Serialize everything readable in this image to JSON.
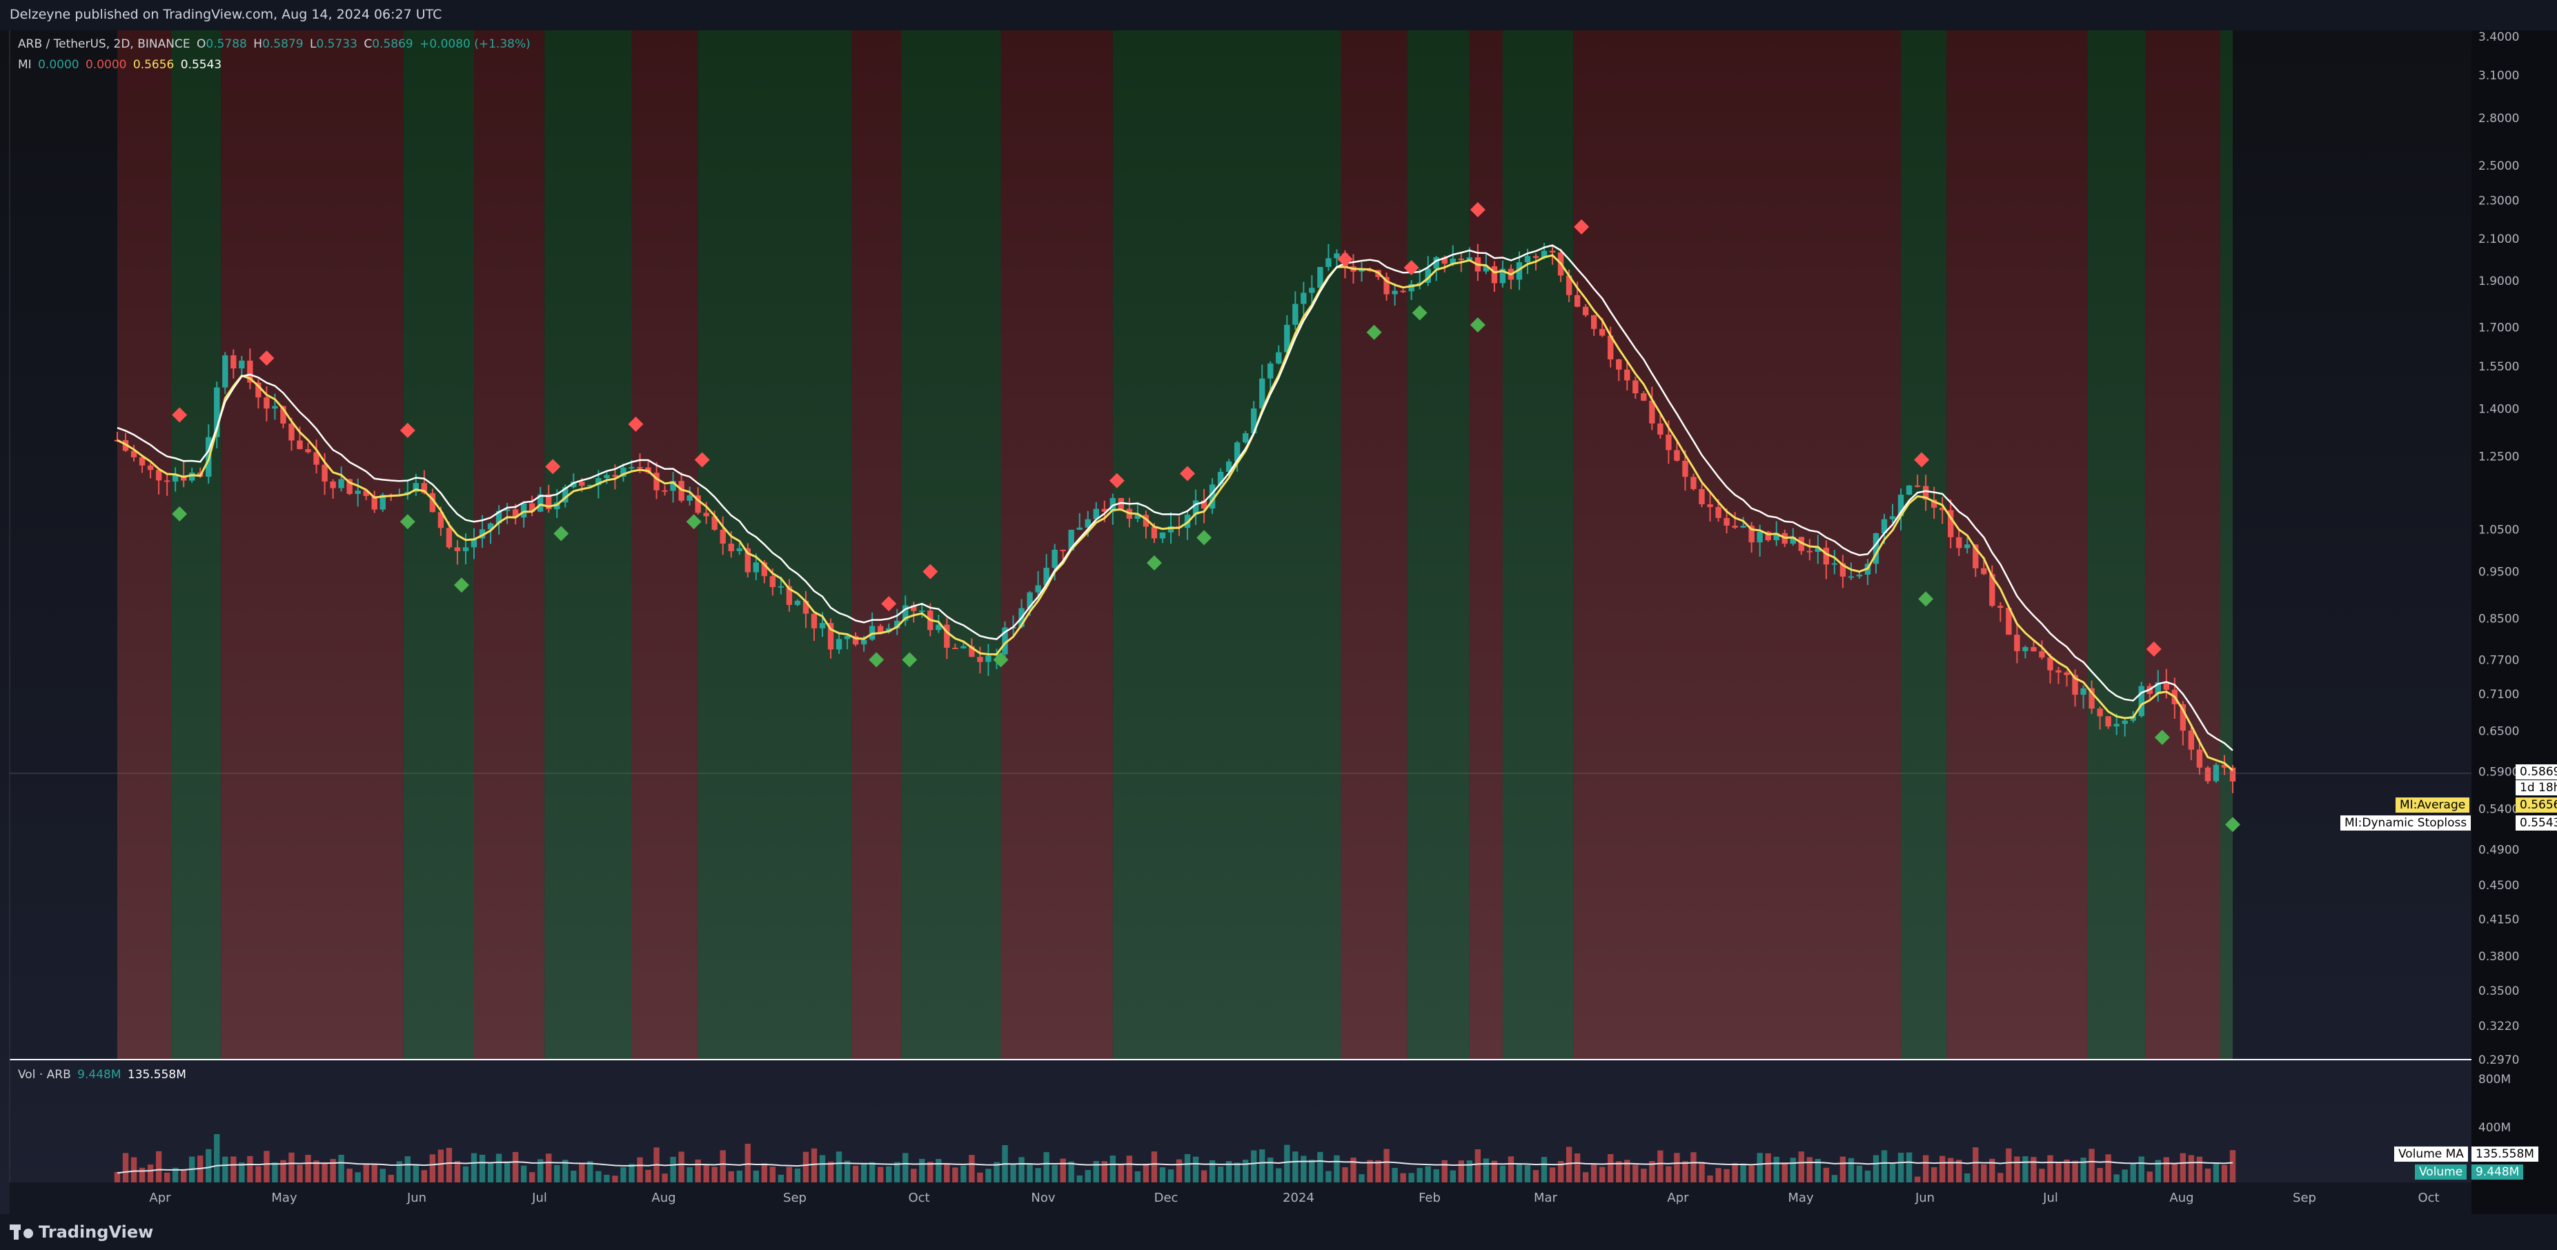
{
  "header": {
    "published": "Delzeyne published on TradingView.com, Aug 14, 2024 06:27 UTC"
  },
  "symbol_legend": {
    "name": "ARB / TetherUS, 2D, BINANCE",
    "o_label": "O",
    "o_val": "0.5788",
    "h_label": "H",
    "h_val": "0.5879",
    "l_label": "L",
    "l_val": "0.5733",
    "c_label": "C",
    "c_val": "0.5869",
    "change": "+0.0080 (+1.38%)"
  },
  "indicator_legend": {
    "name": "MI",
    "v1": "0.0000",
    "v2": "0.0000",
    "v3": "0.5656",
    "v4": "0.5543"
  },
  "volume_legend": {
    "name": "Vol · ARB",
    "v1": "9.448M",
    "v2": "135.558M"
  },
  "price_tags": {
    "last": "0.5869",
    "countdown": "1d 18h",
    "average_label": "MI:Average",
    "average_val": "0.5656",
    "stoploss_label": "MI:Dynamic Stoploss",
    "stoploss_val": "0.5543",
    "volma_label": "Volume MA",
    "volma_val": "135.558M",
    "vol_label": "Volume",
    "vol_val": "9.448M"
  },
  "brand": "TradingView",
  "colors": {
    "up": "#26a69a",
    "down": "#ef5350",
    "bull_zone": "#1b5e20",
    "bear_zone": "#7f1d1d",
    "average": "#f6e05e",
    "stoploss": "#ffffff",
    "sell_marker": "#ff5252",
    "buy_marker": "#4caf50"
  },
  "chart_data": {
    "type": "candlestick",
    "scale": "log",
    "y_ticks": [
      "3.4000",
      "3.1000",
      "2.8000",
      "2.5000",
      "2.3000",
      "2.1000",
      "1.9000",
      "1.7000",
      "1.5500",
      "1.4000",
      "1.2500",
      "1.0500",
      "0.9500",
      "0.8500",
      "0.7700",
      "0.7100",
      "0.6500",
      "0.5900",
      "0.5400",
      "0.4900",
      "0.4500",
      "0.4150",
      "0.3800",
      "0.3500",
      "0.3220",
      "0.2970"
    ],
    "ylim": [
      0.297,
      3.45
    ],
    "x_labels": [
      "Apr",
      "May",
      "Jun",
      "Jul",
      "Aug",
      "Sep",
      "Oct",
      "Nov",
      "Dec",
      "2024",
      "Feb",
      "Mar",
      "Apr",
      "May",
      "Jun",
      "Jul",
      "Aug",
      "Sep",
      "Oct"
    ],
    "volume_ticks": [
      "800M",
      "400M"
    ],
    "anchors": [
      {
        "date": "2023-03-23",
        "price": 1.3
      },
      {
        "date": "2023-03-30",
        "price": 1.2
      },
      {
        "date": "2023-04-12",
        "price": 1.2
      },
      {
        "date": "2023-04-18",
        "price": 1.62
      },
      {
        "date": "2023-04-30",
        "price": 1.38
      },
      {
        "date": "2023-05-12",
        "price": 1.2
      },
      {
        "date": "2023-05-25",
        "price": 1.12
      },
      {
        "date": "2023-06-05",
        "price": 1.17
      },
      {
        "date": "2023-06-12",
        "price": 0.98
      },
      {
        "date": "2023-06-24",
        "price": 1.1
      },
      {
        "date": "2023-07-05",
        "price": 1.12
      },
      {
        "date": "2023-07-22",
        "price": 1.22
      },
      {
        "date": "2023-08-05",
        "price": 1.15
      },
      {
        "date": "2023-08-18",
        "price": 1.0
      },
      {
        "date": "2023-09-01",
        "price": 0.9
      },
      {
        "date": "2023-09-12",
        "price": 0.8
      },
      {
        "date": "2023-09-20",
        "price": 0.83
      },
      {
        "date": "2023-10-02",
        "price": 0.87
      },
      {
        "date": "2023-10-10",
        "price": 0.8
      },
      {
        "date": "2023-10-19",
        "price": 0.76
      },
      {
        "date": "2023-11-01",
        "price": 0.96
      },
      {
        "date": "2023-11-15",
        "price": 1.13
      },
      {
        "date": "2023-11-30",
        "price": 1.02
      },
      {
        "date": "2023-12-10",
        "price": 1.13
      },
      {
        "date": "2023-12-20",
        "price": 1.35
      },
      {
        "date": "2024-01-02",
        "price": 1.82
      },
      {
        "date": "2024-01-12",
        "price": 2.02
      },
      {
        "date": "2024-01-25",
        "price": 1.85
      },
      {
        "date": "2024-02-08",
        "price": 2.01
      },
      {
        "date": "2024-02-20",
        "price": 1.92
      },
      {
        "date": "2024-03-02",
        "price": 2.03
      },
      {
        "date": "2024-03-10",
        "price": 1.73
      },
      {
        "date": "2024-03-22",
        "price": 1.5
      },
      {
        "date": "2024-04-04",
        "price": 1.18
      },
      {
        "date": "2024-04-15",
        "price": 1.05
      },
      {
        "date": "2024-05-01",
        "price": 1.01
      },
      {
        "date": "2024-05-15",
        "price": 0.95
      },
      {
        "date": "2024-05-30",
        "price": 1.18
      },
      {
        "date": "2024-06-12",
        "price": 0.98
      },
      {
        "date": "2024-06-24",
        "price": 0.78
      },
      {
        "date": "2024-07-06",
        "price": 0.73
      },
      {
        "date": "2024-07-16",
        "price": 0.65
      },
      {
        "date": "2024-07-28",
        "price": 0.75
      },
      {
        "date": "2024-08-05",
        "price": 0.59
      },
      {
        "date": "2024-08-14",
        "price": 0.587
      }
    ],
    "zones": [
      {
        "from": "2023-03-23",
        "to": "2023-04-05",
        "state": "bear"
      },
      {
        "from": "2023-04-05",
        "to": "2023-04-17",
        "state": "bull"
      },
      {
        "from": "2023-04-17",
        "to": "2023-05-31",
        "state": "bear"
      },
      {
        "from": "2023-05-31",
        "to": "2023-06-17",
        "state": "bull"
      },
      {
        "from": "2023-06-17",
        "to": "2023-07-04",
        "state": "bear"
      },
      {
        "from": "2023-07-04",
        "to": "2023-07-25",
        "state": "bull"
      },
      {
        "from": "2023-07-25",
        "to": "2023-08-10",
        "state": "bear"
      },
      {
        "from": "2023-08-10",
        "to": "2023-09-16",
        "state": "bull"
      },
      {
        "from": "2023-09-16",
        "to": "2023-09-28",
        "state": "bear"
      },
      {
        "from": "2023-09-28",
        "to": "2023-10-22",
        "state": "bull"
      },
      {
        "from": "2023-10-22",
        "to": "2023-11-18",
        "state": "bear"
      },
      {
        "from": "2023-11-18",
        "to": "2023-12-04",
        "state": "bull"
      },
      {
        "from": "2023-12-04",
        "to": "2024-01-12",
        "state": "bull"
      },
      {
        "from": "2024-01-12",
        "to": "2024-01-28",
        "state": "bear"
      },
      {
        "from": "2024-01-28",
        "to": "2024-02-12",
        "state": "bull"
      },
      {
        "from": "2024-02-12",
        "to": "2024-02-20",
        "state": "bear"
      },
      {
        "from": "2024-02-20",
        "to": "2024-03-08",
        "state": "bull"
      },
      {
        "from": "2024-03-08",
        "to": "2024-05-26",
        "state": "bear"
      },
      {
        "from": "2024-05-26",
        "to": "2024-06-06",
        "state": "bull"
      },
      {
        "from": "2024-06-06",
        "to": "2024-07-10",
        "state": "bear"
      },
      {
        "from": "2024-07-10",
        "to": "2024-07-24",
        "state": "bull"
      },
      {
        "from": "2024-07-24",
        "to": "2024-08-11",
        "state": "bear"
      },
      {
        "from": "2024-08-11",
        "to": "2024-08-14",
        "state": "bull"
      }
    ],
    "sell_signals": [
      {
        "date": "2023-04-07",
        "price": 1.38
      },
      {
        "date": "2023-04-28",
        "price": 1.58
      },
      {
        "date": "2023-06-01",
        "price": 1.33
      },
      {
        "date": "2023-07-06",
        "price": 1.22
      },
      {
        "date": "2023-07-26",
        "price": 1.35
      },
      {
        "date": "2023-08-11",
        "price": 1.24
      },
      {
        "date": "2023-09-25",
        "price": 0.88
      },
      {
        "date": "2023-10-05",
        "price": 0.95
      },
      {
        "date": "2023-11-19",
        "price": 1.18
      },
      {
        "date": "2023-12-06",
        "price": 1.2
      },
      {
        "date": "2024-01-13",
        "price": 2.0
      },
      {
        "date": "2024-01-29",
        "price": 1.96
      },
      {
        "date": "2024-02-14",
        "price": 2.25
      },
      {
        "date": "2024-03-10",
        "price": 2.16
      },
      {
        "date": "2024-05-31",
        "price": 1.24
      },
      {
        "date": "2024-07-26",
        "price": 0.79
      }
    ],
    "buy_signals": [
      {
        "date": "2023-04-07",
        "price": 1.09
      },
      {
        "date": "2023-06-01",
        "price": 1.07
      },
      {
        "date": "2023-06-14",
        "price": 0.92
      },
      {
        "date": "2023-07-08",
        "price": 1.04
      },
      {
        "date": "2023-08-09",
        "price": 1.07
      },
      {
        "date": "2023-09-22",
        "price": 0.77
      },
      {
        "date": "2023-09-30",
        "price": 0.77
      },
      {
        "date": "2023-10-22",
        "price": 0.77
      },
      {
        "date": "2023-11-28",
        "price": 0.97
      },
      {
        "date": "2023-12-10",
        "price": 1.03
      },
      {
        "date": "2024-01-20",
        "price": 1.68
      },
      {
        "date": "2024-01-31",
        "price": 1.76
      },
      {
        "date": "2024-02-14",
        "price": 1.71
      },
      {
        "date": "2024-06-01",
        "price": 0.89
      },
      {
        "date": "2024-07-28",
        "price": 0.64
      },
      {
        "date": "2024-08-14",
        "price": 0.52
      }
    ],
    "volume_range": [
      0,
      900
    ]
  }
}
